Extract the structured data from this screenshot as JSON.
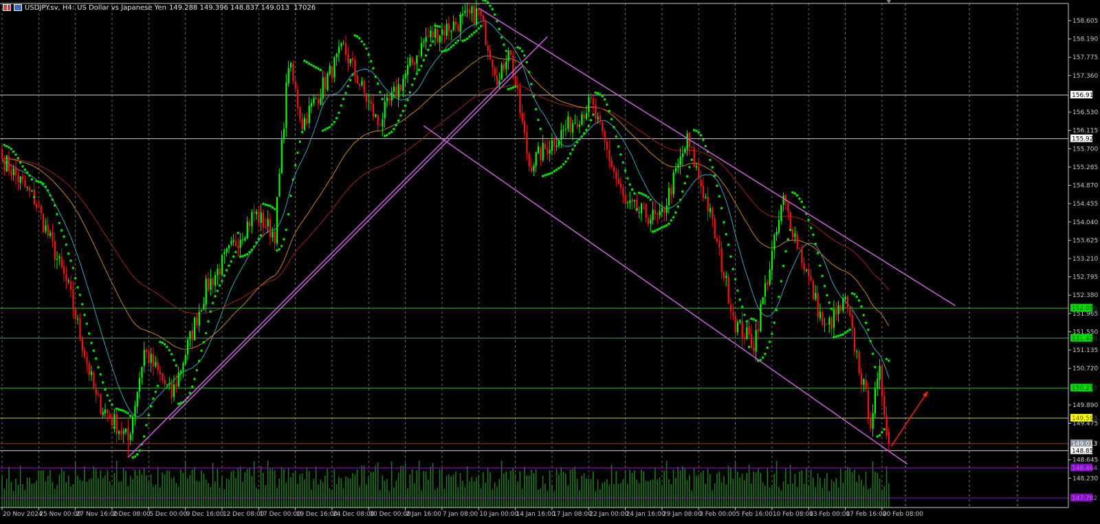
{
  "title": {
    "symbol": "USDJPY.sv, H4:",
    "description": "US Dollar vs Japanese Yen",
    "ohlcv": "149.288 149.396 148.837 149.013  17026",
    "icons": [
      "one-click-trading-icon",
      "chart-type-icon"
    ]
  },
  "colors": {
    "background": "#000000",
    "bull_candle": "#00ff00",
    "bear_candle": "#ff1010",
    "ma_fast": "#3aa6b8",
    "ma_mid": "#c8842a",
    "ma_slow": "#a32222",
    "sar": "#00e000",
    "trendline": "#c060d0",
    "arrow": "#ff2020",
    "volume": "#1f7a1f",
    "axis": "#c8c8c8"
  },
  "chart_data": {
    "type": "candlestick",
    "symbol": "USDJPY.sv",
    "timeframe": "H4",
    "indicators": [
      "moving-average-fast",
      "moving-average-mid",
      "moving-average-slow",
      "parabolic-sar",
      "volumes"
    ],
    "ylim": [
      147.6,
      158.9
    ],
    "grid": "vertical-dashed",
    "price_ticks": [
      "158.605",
      "158.190",
      "157.775",
      "157.360",
      "156.530",
      "156.115",
      "155.700",
      "155.285",
      "154.870",
      "154.455",
      "154.040",
      "153.625",
      "153.210",
      "152.795",
      "152.380",
      "151.965",
      "151.550",
      "151.135",
      "150.720",
      "149.890",
      "149.475",
      "148.645",
      "148.230"
    ],
    "time_ticks": [
      "20 Nov 2024",
      "25 Nov 00:00",
      "27 Nov 16:00",
      "2 Dec 08:00",
      "5 Dec 00:00",
      "9 Dec 16:00",
      "12 Dec 08:00",
      "17 Dec 00:00",
      "19 Dec 16:00",
      "24 Dec 08:00",
      "30 Dec 00:00",
      "2 Jan 16:00",
      "7 Jan 08:00",
      "10 Jan 00:00",
      "14 Jan 16:00",
      "17 Jan 08:00",
      "22 Jan 00:00",
      "24 Jan 16:00",
      "29 Jan 08:00",
      "3 Feb 00:00",
      "5 Feb 16:00",
      "10 Feb 08:00",
      "13 Feb 00:00",
      "17 Feb 16:00",
      "20 Feb 08:00"
    ],
    "close_path": [
      [
        "20 Nov 08:00",
        155.49
      ],
      [
        "22 Nov 16:00",
        154.55
      ],
      [
        "27 Nov 04:00",
        152.53
      ],
      [
        "29 Nov 04:00",
        150.03
      ],
      [
        "3 Dec 12:00",
        149.09
      ],
      [
        "4 Dec 16:00",
        151.12
      ],
      [
        "6 Dec 16:00",
        150.1
      ],
      [
        "11 Dec 04:00",
        152.53
      ],
      [
        "16 Dec 16:00",
        154.24
      ],
      [
        "18 Dec 04:00",
        153.77
      ],
      [
        "19 Dec 04:00",
        157.67
      ],
      [
        "20 Dec 04:00",
        156.27
      ],
      [
        "26 Dec 04:00",
        157.98
      ],
      [
        "30 Dec 16:00",
        156.27
      ],
      [
        "6 Jan 04:00",
        158.21
      ],
      [
        "10 Jan 00:00",
        158.79
      ],
      [
        "13 Jan 12:00",
        157.2
      ],
      [
        "14 Jan 04:00",
        158.06
      ],
      [
        "15 Jan 16:00",
        155.33
      ],
      [
        "22 Jan 04:00",
        156.73
      ],
      [
        "24 Jan 16:00",
        154.4
      ],
      [
        "29 Jan 04:00",
        154.08
      ],
      [
        "31 Jan 04:00",
        155.88
      ],
      [
        "3 Feb 16:00",
        154.4
      ],
      [
        "5 Feb 16:00",
        151.74
      ],
      [
        "7 Feb 00:00",
        151.28
      ],
      [
        "11 Feb 04:00",
        154.55
      ],
      [
        "14 Feb 04:00",
        151.59
      ],
      [
        "17 Feb 16:00",
        152.21
      ],
      [
        "19 Feb 12:00",
        149.56
      ],
      [
        "20 Feb 04:00",
        150.57
      ],
      [
        "20 Feb 20:00",
        149.013
      ]
    ],
    "last_bar": {
      "time": "20 Feb 20:00",
      "open": 149.288,
      "high": 149.396,
      "low": 148.837,
      "close": 149.013,
      "volume": 17026
    },
    "levels": [
      {
        "price": "156.919",
        "line": "#d0d0d0",
        "bg": "#ffffff",
        "fg": "#000000"
      },
      {
        "price": "155.929",
        "line": "#d0d0d0",
        "bg": "#ffffff",
        "fg": "#000000"
      },
      {
        "price": "152.086",
        "line": "#3cb43c",
        "bg": "#00dd00",
        "fg": "#006000"
      },
      {
        "price": "151.404",
        "line": "#3cb43c",
        "bg": "#00dd00",
        "fg": "#006000"
      },
      {
        "price": "150.275",
        "line": "#3cb43c",
        "bg": "#00dd00",
        "fg": "#006000"
      },
      {
        "price": "149.593",
        "line": "#c8c850",
        "bg": "#ffff00",
        "fg": "#606000"
      },
      {
        "price": "149.013",
        "line": "#d02020",
        "bg": "#8a929c",
        "fg": "#ffffff"
      },
      {
        "price": "148.853",
        "line": "#d0d0d0",
        "bg": "#ffffff",
        "fg": "#000000"
      },
      {
        "price": "148.464",
        "line": "#7a20a0",
        "bg": "#8a10c8",
        "fg": "#b060e0"
      },
      {
        "price": "147.782",
        "line": "#7a20a0",
        "bg": "#8a10c8",
        "fg": "#b060e0"
      }
    ],
    "trendlines": [
      {
        "from": [
          "3 Dec 12:00",
          148.7
        ],
        "to": [
          "17 Jan 00:00",
          158.24
        ]
      },
      {
        "from": [
          "6 Dec 12:00",
          149.55
        ],
        "to": [
          "15 Jan 04:00",
          157.57
        ]
      },
      {
        "from": [
          "10 Jan 00:00",
          158.89
        ],
        "to": [
          "27 Feb 16:00",
          152.14
        ]
      },
      {
        "from": [
          "6 Jan 00:00",
          156.22
        ],
        "to": [
          "24 Feb 04:00",
          148.55
        ]
      }
    ],
    "arrow": {
      "from": [
        "21 Feb 00:00",
        148.95
      ],
      "to": [
        "25 Feb 16:00",
        150.2
      ]
    }
  }
}
